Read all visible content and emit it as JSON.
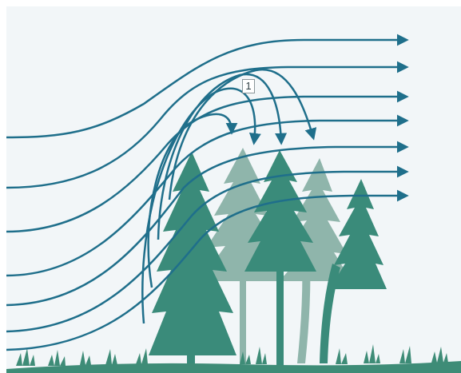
{
  "diagram": {
    "callout_label": "1",
    "colors": {
      "background": "#f2f6f8",
      "flow_line": "#1f6f8b",
      "tree_dark": "#3a8b7a",
      "tree_light": "#8fb5ab",
      "ground": "#3e8c77"
    },
    "elements": {
      "flow_lines": 7,
      "recirculation_arrows": 4,
      "trees_dark": 3,
      "trees_light": 2
    }
  }
}
